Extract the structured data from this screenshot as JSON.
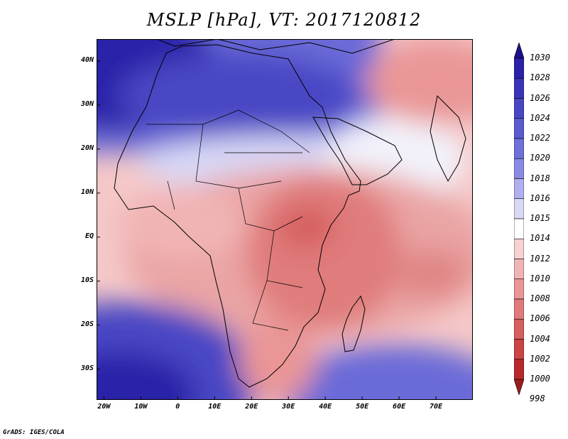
{
  "title": "MSLP [hPa], VT: 2017120812",
  "footer": "GrADS: IGES/COLA",
  "map": {
    "lon_range": [
      -22,
      80
    ],
    "lat_range": [
      -37,
      45
    ],
    "lat_ticks": [
      {
        "lat": 40,
        "label": "40N"
      },
      {
        "lat": 30,
        "label": "30N"
      },
      {
        "lat": 20,
        "label": "20N"
      },
      {
        "lat": 10,
        "label": "10N"
      },
      {
        "lat": 0,
        "label": "EQ"
      },
      {
        "lat": -10,
        "label": "10S"
      },
      {
        "lat": -20,
        "label": "20S"
      },
      {
        "lat": -30,
        "label": "30S"
      }
    ],
    "lon_ticks": [
      {
        "lon": -20,
        "label": "20W"
      },
      {
        "lon": -10,
        "label": "10W"
      },
      {
        "lon": 0,
        "label": "0"
      },
      {
        "lon": 10,
        "label": "10E"
      },
      {
        "lon": 20,
        "label": "20E"
      },
      {
        "lon": 30,
        "label": "30E"
      },
      {
        "lon": 40,
        "label": "40E"
      },
      {
        "lon": 50,
        "label": "50E"
      },
      {
        "lon": 60,
        "label": "60E"
      },
      {
        "lon": 70,
        "label": "70E"
      }
    ]
  },
  "colorbar": {
    "labels": [
      "1030",
      "1028",
      "1026",
      "1024",
      "1022",
      "1020",
      "1018",
      "1016",
      "1015",
      "1014",
      "1012",
      "1010",
      "1008",
      "1006",
      "1004",
      "1002",
      "1000",
      "998"
    ],
    "colors": [
      "#1e0f8c",
      "#2b22a8",
      "#3a35b8",
      "#4a47c4",
      "#5b5bd0",
      "#7070db",
      "#8a8ae5",
      "#b0b0ef",
      "#d8d8f7",
      "#ffffff",
      "#f7d2d2",
      "#f1b4b4",
      "#ea9696",
      "#e07b7b",
      "#d65f5f",
      "#cc4444",
      "#b82a2a",
      "#9c1a1a"
    ]
  },
  "features": [
    {
      "type": "high",
      "lon": -18,
      "lat": 40,
      "value": 1030
    },
    {
      "type": "high",
      "lon": 5,
      "lat": 36,
      "value": 1026
    },
    {
      "type": "high",
      "lon": 30,
      "lat": 35,
      "value": 1024
    },
    {
      "type": "high",
      "lon": -10,
      "lat": -33,
      "value": 1024
    },
    {
      "type": "high",
      "lon": 60,
      "lat": -35,
      "value": 1020
    },
    {
      "type": "low",
      "lon": 30,
      "lat": 2,
      "value": 1004
    },
    {
      "type": "low",
      "lon": 28,
      "lat": -8,
      "value": 1006
    },
    {
      "type": "low",
      "lon": 67,
      "lat": -8,
      "value": 1008
    },
    {
      "type": "low",
      "lon": 65,
      "lat": 42,
      "value": 1008
    },
    {
      "type": "low",
      "lon": 22,
      "lat": -25,
      "value": 1008
    }
  ]
}
